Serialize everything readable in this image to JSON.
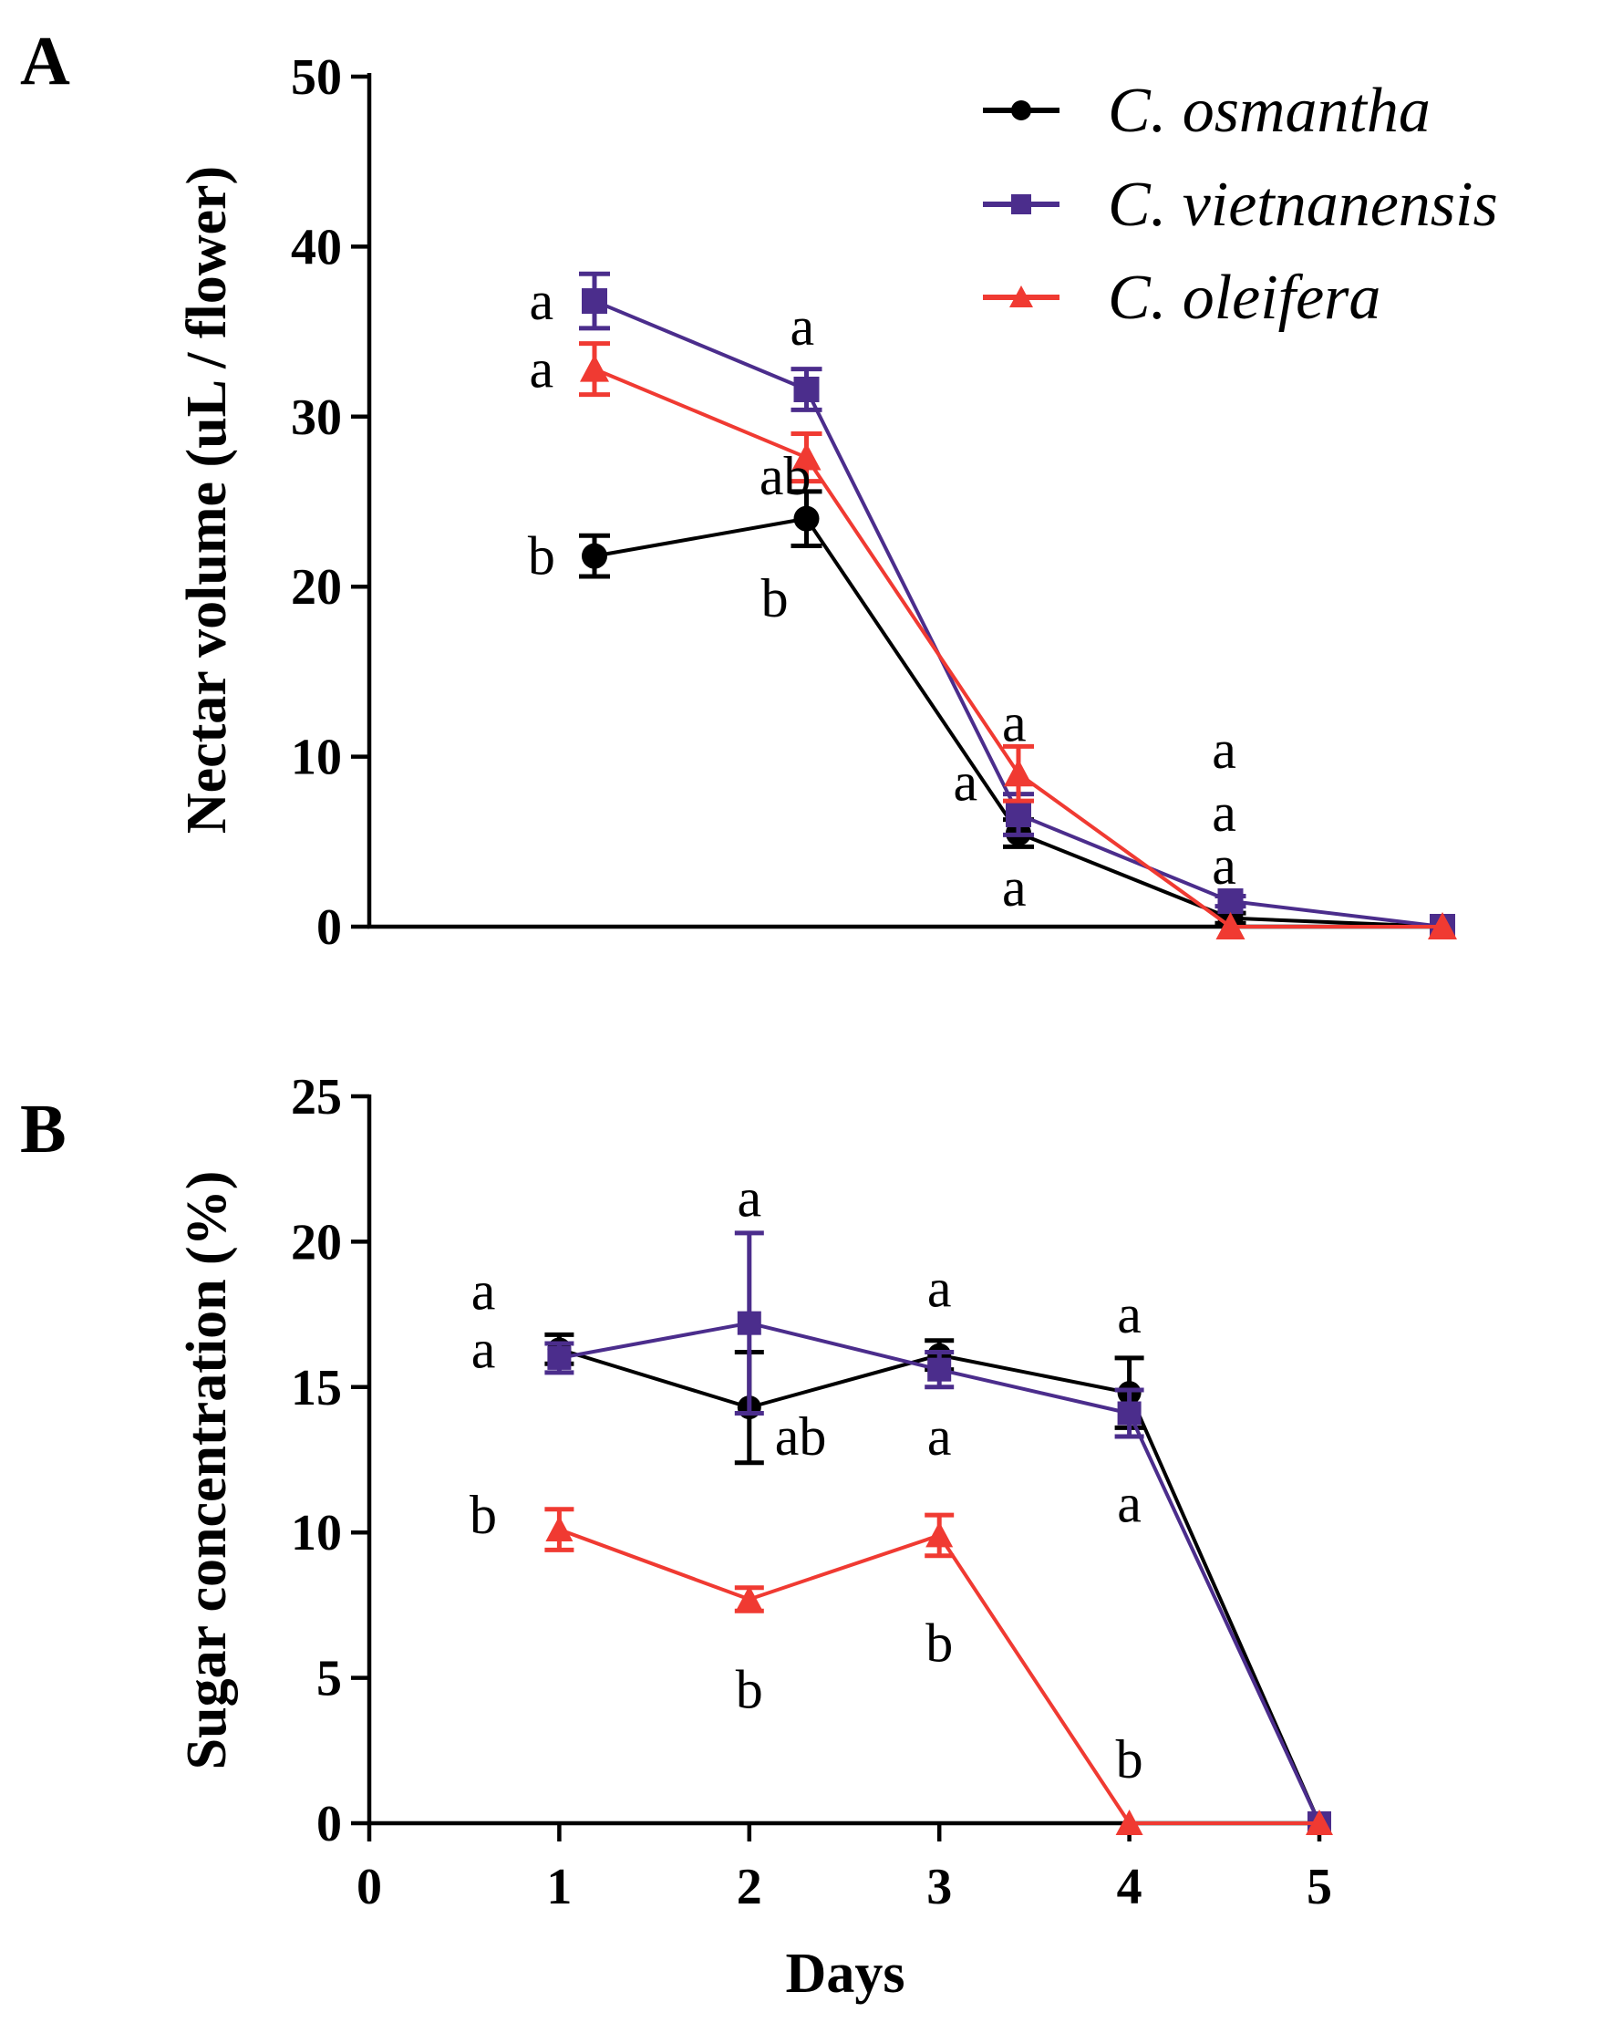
{
  "chart_data": [
    {
      "panel": "A",
      "type": "line",
      "title": "",
      "xlabel": "",
      "ylabel": "Nectar volume (uL / flower)",
      "ylim": [
        0,
        50
      ],
      "yticks": [
        0,
        10,
        20,
        30,
        40,
        50
      ],
      "x": [
        1,
        2,
        3,
        4,
        5
      ],
      "series": [
        {
          "name": "C. osmantha",
          "color": "#000000",
          "marker": "circle",
          "values": [
            21.8,
            24.0,
            5.5,
            0.5,
            0.0
          ],
          "errors": [
            1.2,
            1.6,
            0.8,
            0.3,
            0.0
          ]
        },
        {
          "name": "C. vietnanensis",
          "color": "#4b2d8c",
          "marker": "square",
          "values": [
            36.8,
            31.6,
            6.6,
            1.5,
            0.0
          ],
          "errors": [
            1.6,
            1.2,
            1.2,
            0.3,
            0.0
          ]
        },
        {
          "name": "C. oleifera",
          "color": "#f03a32",
          "marker": "triangle",
          "values": [
            32.8,
            27.6,
            9.0,
            0.0,
            0.0
          ],
          "errors": [
            1.5,
            1.4,
            1.6,
            0.0,
            0.0
          ]
        }
      ],
      "annotations": [
        {
          "text": "a",
          "x": 0.75,
          "y": 36.8
        },
        {
          "text": "a",
          "x": 0.75,
          "y": 32.8
        },
        {
          "text": "b",
          "x": 0.75,
          "y": 21.8
        },
        {
          "text": "a",
          "x": 1.98,
          "y": 35.3
        },
        {
          "text": "ab",
          "x": 1.9,
          "y": 26.5
        },
        {
          "text": "b",
          "x": 1.85,
          "y": 19.3
        },
        {
          "text": "a",
          "x": 2.98,
          "y": 12.0
        },
        {
          "text": "a",
          "x": 2.75,
          "y": 8.5
        },
        {
          "text": "a",
          "x": 2.98,
          "y": 2.3
        },
        {
          "text": "a",
          "x": 3.97,
          "y": 10.4
        },
        {
          "text": "a",
          "x": 3.97,
          "y": 6.7
        },
        {
          "text": "a",
          "x": 3.97,
          "y": 3.6
        }
      ]
    },
    {
      "panel": "B",
      "type": "line",
      "title": "",
      "xlabel": "Days",
      "ylabel": "Sugar concentration  (%)",
      "xlim": [
        0,
        5
      ],
      "ylim": [
        0,
        25
      ],
      "xticks": [
        0,
        1,
        2,
        3,
        4,
        5
      ],
      "yticks": [
        0,
        5,
        10,
        15,
        20,
        25
      ],
      "x": [
        1,
        2,
        3,
        4,
        5
      ],
      "series": [
        {
          "name": "C. osmantha",
          "color": "#000000",
          "marker": "circle",
          "values": [
            16.3,
            14.3,
            16.1,
            14.8,
            0.0
          ],
          "errors": [
            0.5,
            1.9,
            0.5,
            1.2,
            0.0
          ]
        },
        {
          "name": "C. vietnanensis",
          "color": "#4b2d8c",
          "marker": "square",
          "values": [
            16.0,
            17.2,
            15.6,
            14.1,
            0.0
          ],
          "errors": [
            0.5,
            3.1,
            0.6,
            0.8,
            0.0
          ]
        },
        {
          "name": "C. oleifera",
          "color": "#f03a32",
          "marker": "triangle",
          "values": [
            10.1,
            7.7,
            9.9,
            0.0,
            0.0
          ],
          "errors": [
            0.7,
            0.4,
            0.7,
            0.0,
            0.0
          ]
        }
      ],
      "annotations": [
        {
          "text": "a",
          "x": 0.6,
          "y": 18.3
        },
        {
          "text": "a",
          "x": 0.6,
          "y": 16.3
        },
        {
          "text": "b",
          "x": 0.6,
          "y": 10.6
        },
        {
          "text": "a",
          "x": 2.0,
          "y": 21.5
        },
        {
          "text": "ab",
          "x": 2.27,
          "y": 13.3
        },
        {
          "text": "b",
          "x": 2.0,
          "y": 4.6
        },
        {
          "text": "a",
          "x": 3.0,
          "y": 18.4
        },
        {
          "text": "a",
          "x": 3.0,
          "y": 13.3
        },
        {
          "text": "b",
          "x": 3.0,
          "y": 6.2
        },
        {
          "text": "a",
          "x": 4.0,
          "y": 17.5
        },
        {
          "text": "a",
          "x": 4.0,
          "y": 11.0
        },
        {
          "text": "b",
          "x": 4.0,
          "y": 2.2
        }
      ]
    }
  ],
  "panel_labels": {
    "a": "A",
    "b": "B"
  },
  "legend": [
    "C. osmantha",
    "C. vietnanensis",
    "C. oleifera"
  ]
}
